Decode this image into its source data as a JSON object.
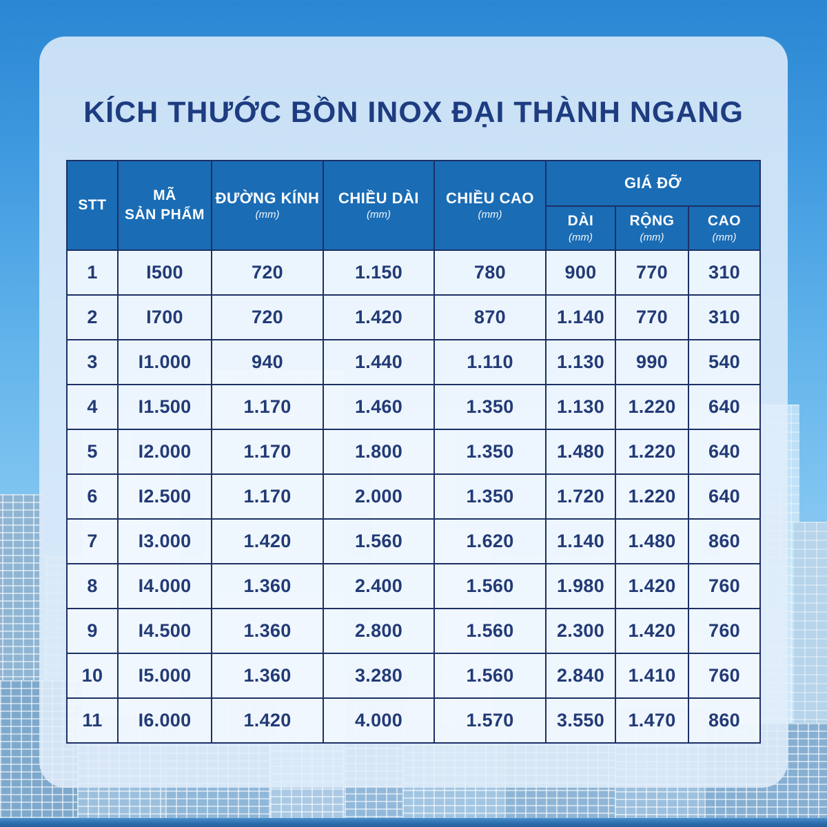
{
  "colors": {
    "background_top": "#2a86d2",
    "background_bottom": "#a8d2ee",
    "card": "#e2eefa",
    "header_blue": "#1a6cb5",
    "border_navy": "#1c2f66",
    "text_navy": "#223a76",
    "title_navy": "#1e3c80",
    "bottom_strip": "#2b6cad"
  },
  "chart_data": {
    "type": "table",
    "title": "KÍCH THƯỚC BỒN INOX ĐẠI THÀNH NGANG",
    "header": {
      "stt": "STT",
      "ma_line1": "MÃ",
      "ma_line2": "SẢN PHẨM",
      "duong_kinh": "ĐƯỜNG KÍNH",
      "chieu_dai": "CHIỀU DÀI",
      "chieu_cao": "CHIỀU CAO",
      "gia_do": "GIÁ ĐỠ",
      "dai": "DÀI",
      "rong": "RỘNG",
      "cao": "CAO",
      "unit": "(mm)"
    },
    "columns": [
      "STT",
      "MÃ SẢN PHẨM",
      "ĐƯỜNG KÍNH (mm)",
      "CHIỀU DÀI (mm)",
      "CHIỀU CAO (mm)",
      "GIÁ ĐỠ DÀI (mm)",
      "GIÁ ĐỠ RỘNG (mm)",
      "GIÁ ĐỠ CAO (mm)"
    ],
    "rows": [
      [
        "1",
        "I500",
        "720",
        "1.150",
        "780",
        "900",
        "770",
        "310"
      ],
      [
        "2",
        "I700",
        "720",
        "1.420",
        "870",
        "1.140",
        "770",
        "310"
      ],
      [
        "3",
        "I1.000",
        "940",
        "1.440",
        "1.110",
        "1.130",
        "990",
        "540"
      ],
      [
        "4",
        "I1.500",
        "1.170",
        "1.460",
        "1.350",
        "1.130",
        "1.220",
        "640"
      ],
      [
        "5",
        "I2.000",
        "1.170",
        "1.800",
        "1.350",
        "1.480",
        "1.220",
        "640"
      ],
      [
        "6",
        "I2.500",
        "1.170",
        "2.000",
        "1.350",
        "1.720",
        "1.220",
        "640"
      ],
      [
        "7",
        "I3.000",
        "1.420",
        "1.560",
        "1.620",
        "1.140",
        "1.480",
        "860"
      ],
      [
        "8",
        "I4.000",
        "1.360",
        "2.400",
        "1.560",
        "1.980",
        "1.420",
        "760"
      ],
      [
        "9",
        "I4.500",
        "1.360",
        "2.800",
        "1.560",
        "2.300",
        "1.420",
        "760"
      ],
      [
        "10",
        "I5.000",
        "1.360",
        "3.280",
        "1.560",
        "2.840",
        "1.410",
        "760"
      ],
      [
        "11",
        "I6.000",
        "1.420",
        "4.000",
        "1.570",
        "3.550",
        "1.470",
        "860"
      ]
    ]
  }
}
